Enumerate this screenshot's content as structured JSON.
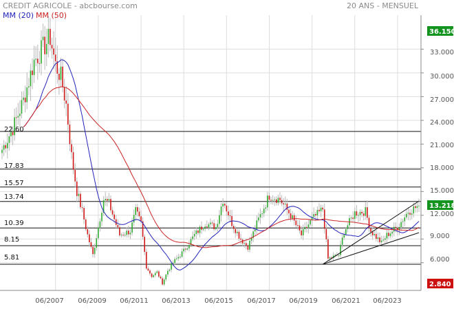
{
  "header": {
    "title": "CREDIT AGRICOLE - abcbourse.com",
    "period": "20 ANS - MENSUEL"
  },
  "colors": {
    "up": "#2eaa2e",
    "down": "#d01818",
    "ma20": "#2222bb",
    "ma50": "#cc2222",
    "grid": "#dddddd",
    "level": "#111111",
    "badge_high": "#13941f",
    "badge_last": "#13941f",
    "badge_low": "#cc1111"
  },
  "chart_data": {
    "type": "candlestick",
    "interval": "monthly",
    "period_label": "20 ANS - MENSUEL",
    "x_range": [
      "2004-12",
      "2024-06"
    ],
    "y_range": [
      2.5,
      37.3
    ],
    "y_ticks": [
      "33.000",
      "30.000",
      "27.000",
      "24.000",
      "21.000",
      "18.000",
      "15.000",
      "12.000",
      "9.000",
      "6.000"
    ],
    "y_tick_values": [
      33,
      30,
      27,
      24,
      21,
      18,
      15,
      12,
      9,
      6
    ],
    "x_ticks": [
      "06/2007",
      "06/2009",
      "06/2011",
      "06/2013",
      "06/2015",
      "06/2017",
      "06/2019",
      "06/2021",
      "06/2023"
    ],
    "x_tick_dates": [
      "2007-06",
      "2009-06",
      "2011-06",
      "2013-06",
      "2015-06",
      "2017-06",
      "2019-06",
      "2021-06",
      "2023-06"
    ],
    "legend": [
      {
        "label": "MM (20)",
        "color": "#2222bb"
      },
      {
        "label": "MM (50)",
        "color": "#cc2222"
      }
    ],
    "levels": [
      {
        "label": "22.60",
        "value": 22.6
      },
      {
        "label": "17.83",
        "value": 17.83
      },
      {
        "label": "15.57",
        "value": 15.57
      },
      {
        "label": "13.74",
        "value": 13.74
      },
      {
        "label": "10.39",
        "value": 10.39
      },
      {
        "label": "8.15",
        "value": 8.15
      },
      {
        "label": "5.81",
        "value": 5.81
      }
    ],
    "trendlines": [
      {
        "from": [
          "2019-12",
          5.8
        ],
        "to": [
          "2024-06",
          13.8
        ]
      },
      {
        "from": [
          "2019-12",
          5.8
        ],
        "to": [
          "2024-06",
          9.8
        ]
      }
    ],
    "badges": {
      "high": {
        "label": "36.150",
        "value": 36.15
      },
      "last": {
        "label": "13.218",
        "value": 13.218
      },
      "low": {
        "label": "2.840",
        "value": 2.84
      }
    },
    "price_anchors": [
      [
        "2004-12",
        20.3
      ],
      [
        "2005-06",
        23.0
      ],
      [
        "2005-12",
        26.5
      ],
      [
        "2006-06",
        31.5
      ],
      [
        "2006-12",
        33.5
      ],
      [
        "2007-03",
        34.5
      ],
      [
        "2007-06",
        31.0
      ],
      [
        "2007-09",
        29.5
      ],
      [
        "2007-12",
        26.0
      ],
      [
        "2008-03",
        19.5
      ],
      [
        "2008-06",
        15.0
      ],
      [
        "2008-09",
        12.5
      ],
      [
        "2008-12",
        9.5
      ],
      [
        "2009-03",
        7.0
      ],
      [
        "2009-06",
        10.5
      ],
      [
        "2009-09",
        14.0
      ],
      [
        "2009-12",
        13.5
      ],
      [
        "2010-06",
        9.5
      ],
      [
        "2010-12",
        10.0
      ],
      [
        "2011-03",
        12.5
      ],
      [
        "2011-06",
        11.0
      ],
      [
        "2011-09",
        5.5
      ],
      [
        "2011-12",
        4.3
      ],
      [
        "2012-03",
        4.8
      ],
      [
        "2012-06",
        3.4
      ],
      [
        "2012-09",
        5.0
      ],
      [
        "2012-12",
        6.0
      ],
      [
        "2013-06",
        7.5
      ],
      [
        "2013-12",
        9.5
      ],
      [
        "2014-06",
        11.0
      ],
      [
        "2014-12",
        10.5
      ],
      [
        "2015-04",
        14.0
      ],
      [
        "2015-09",
        11.0
      ],
      [
        "2016-02",
        9.0
      ],
      [
        "2016-06",
        8.0
      ],
      [
        "2016-12",
        11.5
      ],
      [
        "2017-06",
        14.5
      ],
      [
        "2017-12",
        14.0
      ],
      [
        "2018-06",
        12.0
      ],
      [
        "2018-12",
        9.5
      ],
      [
        "2019-06",
        11.5
      ],
      [
        "2019-12",
        12.8
      ],
      [
        "2020-03",
        6.5
      ],
      [
        "2020-09",
        7.0
      ],
      [
        "2020-12",
        10.0
      ],
      [
        "2021-06",
        12.3
      ],
      [
        "2021-12",
        12.5
      ],
      [
        "2022-03",
        10.0
      ],
      [
        "2022-09",
        8.5
      ],
      [
        "2022-12",
        9.5
      ],
      [
        "2023-06",
        10.5
      ],
      [
        "2023-12",
        12.5
      ],
      [
        "2024-06",
        13.218
      ]
    ]
  }
}
